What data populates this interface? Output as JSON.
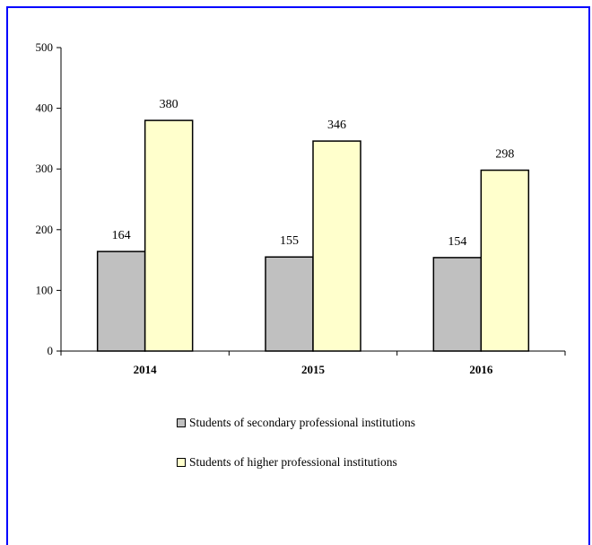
{
  "chart_data": {
    "type": "bar",
    "categories": [
      "2014",
      "2015",
      "2016"
    ],
    "series": [
      {
        "name": "Students of secondary professional institutions",
        "values": [
          164,
          155,
          154
        ],
        "color": "#c0c0c0"
      },
      {
        "name": "Students of higher professional institutions",
        "values": [
          380,
          346,
          298
        ],
        "color": "#ffffcc"
      }
    ],
    "ylim": [
      0,
      500
    ],
    "yticks": [
      0,
      100,
      200,
      300,
      400,
      500
    ],
    "xlabel": "",
    "ylabel": "",
    "grid": false,
    "legend_position": "bottom"
  }
}
